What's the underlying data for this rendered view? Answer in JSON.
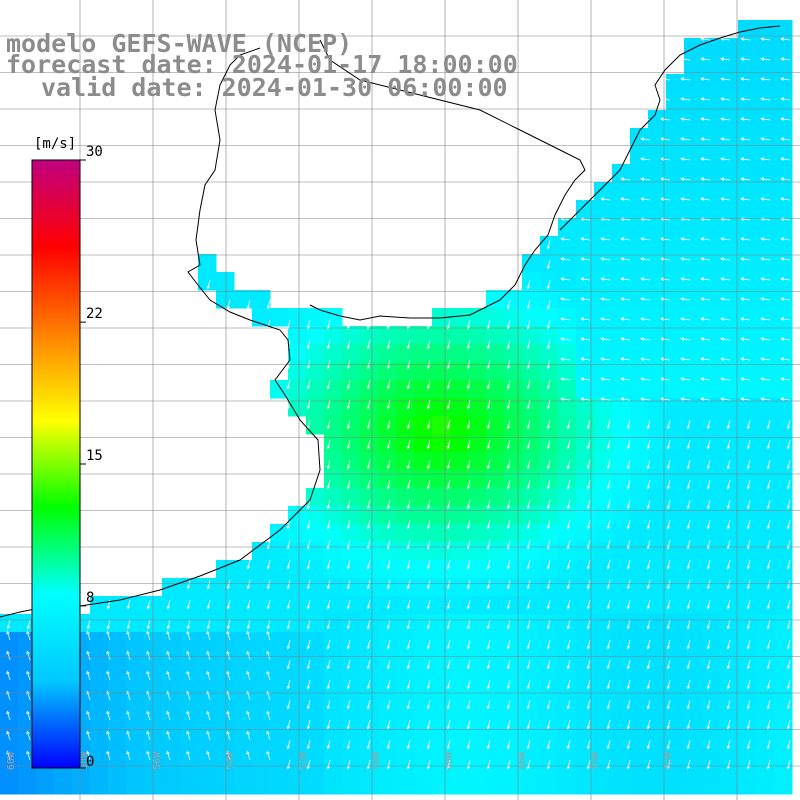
{
  "header": {
    "line1": "modelo GEFS-WAVE (NCEP)",
    "line2": "forecast date: 2024-01-17 18:00:00",
    "line3": "valid date: 2024-01-30 06:00:00"
  },
  "colorbar": {
    "unit_label": "[m/s]",
    "ticks": [
      {
        "value": 30,
        "label": "30"
      },
      {
        "value": 22,
        "label": "22"
      },
      {
        "value": 15,
        "label": "15"
      },
      {
        "value": 8,
        "label": "8"
      },
      {
        "value": 0,
        "label": "0"
      }
    ],
    "min": 0,
    "max": 30,
    "colors": [
      "#0000ff",
      "#00c8ff",
      "#00ffff",
      "#00ff00",
      "#ffff00",
      "#ff8000",
      "#ff0000",
      "#c00080"
    ]
  },
  "map": {
    "grid_lines": true,
    "land_color": "#ffffff",
    "coast_color": "#000000",
    "gridline_color": "#808080",
    "vector_color": "#ffffff",
    "lon_labels": [
      "60W",
      "58W",
      "56W",
      "54W",
      "52W",
      "50W",
      "48W",
      "46W",
      "44W",
      "42W"
    ]
  }
}
